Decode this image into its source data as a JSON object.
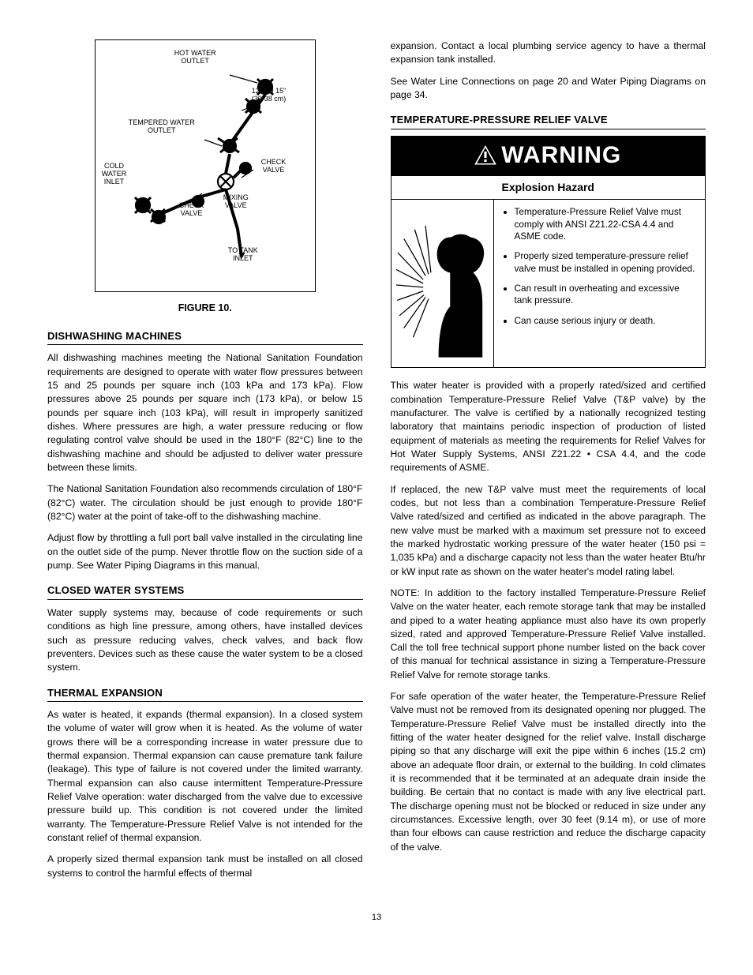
{
  "figure": {
    "caption": "FIGURE 10.",
    "labels": {
      "hot_water_outlet": "HOT WATER\nOUTLET",
      "dimension": "12\" TO 15\"\n(30-38 cm)",
      "tempered_water_outlet": "TEMPERED WATER\nOUTLET",
      "cold_water_inlet": "COLD\nWATER\nINLET",
      "check_valve_1": "CHECK\nVALVE",
      "check_valve_2": "CHECK\nVALVE",
      "mixing_valve": "MIXING\nVALVE",
      "to_tank_inlet": "TO TANK\nINLET"
    }
  },
  "left": {
    "h1": "DISHWASHING MACHINES",
    "p1": "All dishwashing machines meeting the National Sanitation Foundation requirements are designed to operate with water flow pressures between 15 and 25 pounds per square inch (103 kPa and 173 kPa). Flow pressures above 25 pounds per square inch (173 kPa), or below 15 pounds per square inch (103 kPa), will result in improperly sanitized dishes. Where pressures are high, a water pressure reducing or flow regulating control valve should be used in the 180°F (82°C) line to the dishwashing machine and should be adjusted to deliver water pressure between these limits.",
    "p2": "The National Sanitation Foundation also recommends circulation of 180°F (82°C) water. The circulation should be just enough to provide 180°F (82°C) water at the point of take-off to the dishwashing machine.",
    "p3": "Adjust flow by throttling a full port ball valve installed in the circulating line on the outlet side of the pump. Never throttle flow on the suction side of a pump. See Water Piping Diagrams in this manual.",
    "h2": "CLOSED WATER SYSTEMS",
    "p4": "Water supply systems may, because of code requirements or such conditions as high line pressure, among others, have installed devices such as pressure reducing valves, check valves, and back flow preventers. Devices such as these cause the water system to be a closed system.",
    "h3": "THERMAL EXPANSION",
    "p5": "As water is heated, it expands (thermal expansion). In a closed system the volume of water will grow when it is heated. As the volume of water grows there will be a corresponding increase in water pressure due to thermal expansion. Thermal expansion can cause premature tank failure (leakage). This type of failure is not covered under the limited warranty. Thermal expansion can also cause intermittent Temperature-Pressure Relief Valve operation: water discharged from the valve due to excessive pressure build up. This condition is not covered under the limited warranty. The Temperature-Pressure Relief Valve is not intended for the constant relief of thermal expansion.",
    "p6": "A properly sized thermal expansion tank must be installed on all closed systems to control the harmful effects of thermal"
  },
  "right": {
    "p_top1": "expansion. Contact a local plumbing service agency to have a thermal expansion tank installed.",
    "p_top2": "See Water Line Connections on page 20 and Water Piping Diagrams on page 34.",
    "h1": "TEMPERATURE-PRESSURE RELIEF VALVE",
    "warning": {
      "header": "WARNING",
      "subheader": "Explosion Hazard",
      "items": [
        "Temperature-Pressure Relief Valve must comply with ANSI Z21.22-CSA 4.4 and ASME code.",
        "Properly sized temperature-pressure relief valve must be installed in opening provided.",
        "Can result in overheating and excessive tank pressure.",
        "Can cause serious injury or death."
      ]
    },
    "p1": "This water heater is provided with a properly rated/sized and certified combination Temperature-Pressure Relief Valve (T&P valve) by the manufacturer. The valve is certified by a nationally recognized testing laboratory that maintains periodic inspection of production of listed equipment of materials as meeting the requirements for Relief Valves for Hot Water Supply Systems, ANSI Z21.22 • CSA 4.4, and the code requirements of ASME.",
    "p2": "If replaced, the new T&P valve must meet the requirements of local codes, but not less than a combination Temperature-Pressure Relief Valve rated/sized and certified as indicated in the above paragraph. The new valve must be marked with a maximum set pressure not to exceed the marked hydrostatic working pressure of the water heater (150 psi = 1,035 kPa) and a discharge capacity not less than the water heater Btu/hr or kW input rate as shown on the water heater's model rating label.",
    "p3": "NOTE: In addition to the factory installed Temperature-Pressure Relief Valve on the water heater, each remote storage tank that may be installed and piped to a water heating appliance must also have its own properly sized, rated and approved Temperature-Pressure Relief Valve installed. Call the toll free technical support phone number listed on the back cover of this manual for technical assistance in sizing a Temperature-Pressure Relief Valve for remote storage tanks.",
    "p4": "For safe operation of the water heater, the Temperature-Pressure Relief Valve must not be removed from its designated opening nor plugged. The Temperature-Pressure Relief Valve must be installed directly into the fitting of the water heater designed for the relief valve. Install discharge piping so that any discharge will exit the pipe within 6 inches (15.2 cm) above an adequate floor drain, or external to the building. In cold climates it is recommended that it be terminated at an adequate drain inside the building. Be certain that no contact is made with any live electrical part. The discharge opening must not be blocked or reduced in size under any circumstances. Excessive length, over 30 feet (9.14 m), or use of more than four elbows can cause restriction and reduce the discharge capacity of the valve."
  },
  "page_number": "13",
  "colors": {
    "text": "#000000",
    "background": "#ffffff",
    "warning_bg": "#000000",
    "warning_fg": "#ffffff"
  }
}
